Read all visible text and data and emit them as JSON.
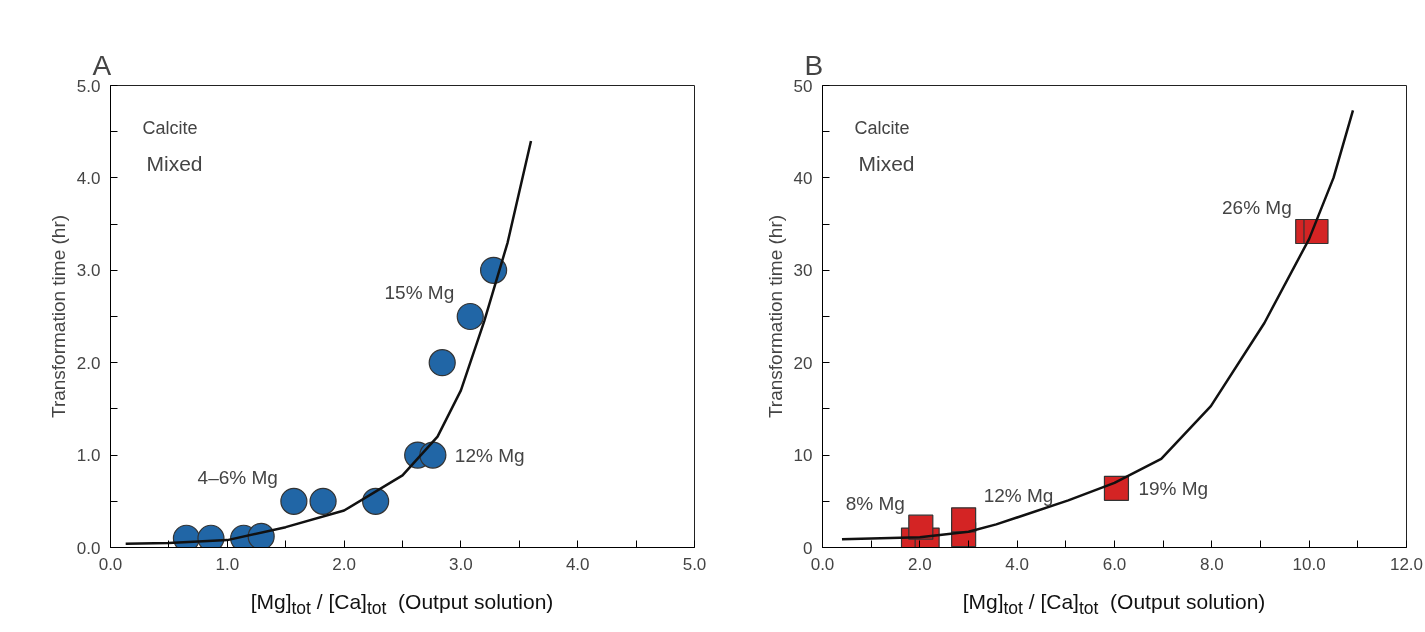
{
  "chart_data": [
    {
      "type": "scatter",
      "title": "A",
      "xlabel": "[Mg]$_{tot}$ / [Ca]$_{tot}$   (Output solution)",
      "ylabel": "Transformation time (hr)",
      "xlim": [
        0,
        5
      ],
      "ylim": [
        0,
        5
      ],
      "xticks": [
        {
          "value": 0,
          "label": "0.0"
        },
        {
          "value": 0.5,
          "label": null
        },
        {
          "value": 1,
          "label": "1.0"
        },
        {
          "value": 1.5,
          "label": null
        },
        {
          "value": 2,
          "label": "2.0"
        },
        {
          "value": 2.5,
          "label": null
        },
        {
          "value": 3,
          "label": "3.0"
        },
        {
          "value": 3.5,
          "label": null
        },
        {
          "value": 4,
          "label": "4.0"
        },
        {
          "value": 4.5,
          "label": null
        },
        {
          "value": 5,
          "label": "5.0"
        }
      ],
      "yticks": [
        {
          "value": 0,
          "label": "0.0"
        },
        {
          "value": 0.5,
          "label": null
        },
        {
          "value": 1,
          "label": "1.0"
        },
        {
          "value": 1.5,
          "label": null
        },
        {
          "value": 2,
          "label": "2.0"
        },
        {
          "value": 2.5,
          "label": null
        },
        {
          "value": 3,
          "label": "3.0"
        },
        {
          "value": 3.5,
          "label": null
        },
        {
          "value": 4,
          "label": "4.0"
        },
        {
          "value": 4.5,
          "label": null
        },
        {
          "value": 5,
          "label": "5.0"
        }
      ],
      "grid": false,
      "series": [
        {
          "type": "line",
          "color": "#111111",
          "x": [
            0.13,
            0.5,
            1.0,
            1.5,
            2.0,
            2.5,
            2.8,
            3.0,
            3.2,
            3.4,
            3.6
          ],
          "values": [
            0.04,
            0.05,
            0.08,
            0.22,
            0.4,
            0.78,
            1.2,
            1.7,
            2.45,
            3.3,
            4.4
          ]
        },
        {
          "color": "#2166a6",
          "marker": "circle",
          "x": [
            0.65,
            0.86,
            1.14,
            1.29,
            1.57,
            1.82,
            2.27,
            2.63,
            2.76,
            2.84,
            3.08,
            3.28
          ],
          "values": [
            0.1,
            0.1,
            0.1,
            0.12,
            0.5,
            0.5,
            0.5,
            1.0,
            1.0,
            2.0,
            2.5,
            3.0
          ]
        }
      ],
      "annotations": [
        "Calcite",
        "Mixed",
        {
          "text": "15% Mg",
          "x": 3.08,
          "y": 2.5
        },
        {
          "text": "4–6% Mg",
          "x": 1.57,
          "y": 0.5
        },
        {
          "text": "12% Mg",
          "x": 2.76,
          "y": 1.0
        }
      ]
    },
    {
      "type": "scatter",
      "title": "B",
      "xlabel": "[Mg]$_{tot}$ / [Ca]$_{tot}$   (Output solution)",
      "ylabel": "Transformation time (hr)",
      "xlim": [
        0,
        12
      ],
      "ylim": [
        0,
        50
      ],
      "xticks": [
        {
          "value": 0,
          "label": "0.0"
        },
        {
          "value": 1,
          "label": null
        },
        {
          "value": 2,
          "label": "2.0"
        },
        {
          "value": 3,
          "label": null
        },
        {
          "value": 4,
          "label": "4.0"
        },
        {
          "value": 5,
          "label": null
        },
        {
          "value": 6,
          "label": "6.0"
        },
        {
          "value": 7,
          "label": null
        },
        {
          "value": 8,
          "label": "8.0"
        },
        {
          "value": 9,
          "label": null
        },
        {
          "value": 10,
          "label": "10.0"
        },
        {
          "value": 11,
          "label": null
        },
        {
          "value": 12,
          "label": "12.0"
        }
      ],
      "yticks": [
        0,
        {
          "value": 5,
          "label": null
        },
        10,
        {
          "value": 15,
          "label": null
        },
        20,
        {
          "value": 25,
          "label": null
        },
        30,
        {
          "value": 35,
          "label": null
        },
        40,
        {
          "value": 45,
          "label": null
        },
        50
      ],
      "grid": false,
      "series": [
        {
          "type": "line",
          "color": "#111111",
          "x": [
            0.4,
            2.0,
            3.0,
            3.57,
            5.05,
            6.0,
            6.96,
            7.98,
            9.08,
            10.0,
            10.5,
            10.9
          ],
          "values": [
            0.9,
            1.1,
            1.7,
            2.5,
            5.1,
            7.0,
            9.6,
            15.3,
            24.3,
            33.4,
            40.0,
            47.3
          ]
        },
        {
          "color": "#d42424",
          "marker": "square",
          "x": [
            1.87,
            2.15,
            2.02,
            2.9,
            2.9,
            6.04,
            9.97,
            10.14
          ],
          "values": [
            0.8,
            0.8,
            2.2,
            1.4,
            3.0,
            6.4,
            34.2,
            34.2
          ]
        }
      ],
      "annotations": [
        "Calcite",
        "Mixed",
        {
          "text": "26% Mg",
          "x": 9.97,
          "y": 34.2
        },
        {
          "text": "8% Mg",
          "x": 2.02,
          "y": 2.2
        },
        {
          "text": "12% Mg",
          "x": 2.9,
          "y": 3.0
        },
        {
          "text": "19% Mg",
          "x": 6.04,
          "y": 6.4
        }
      ]
    }
  ]
}
